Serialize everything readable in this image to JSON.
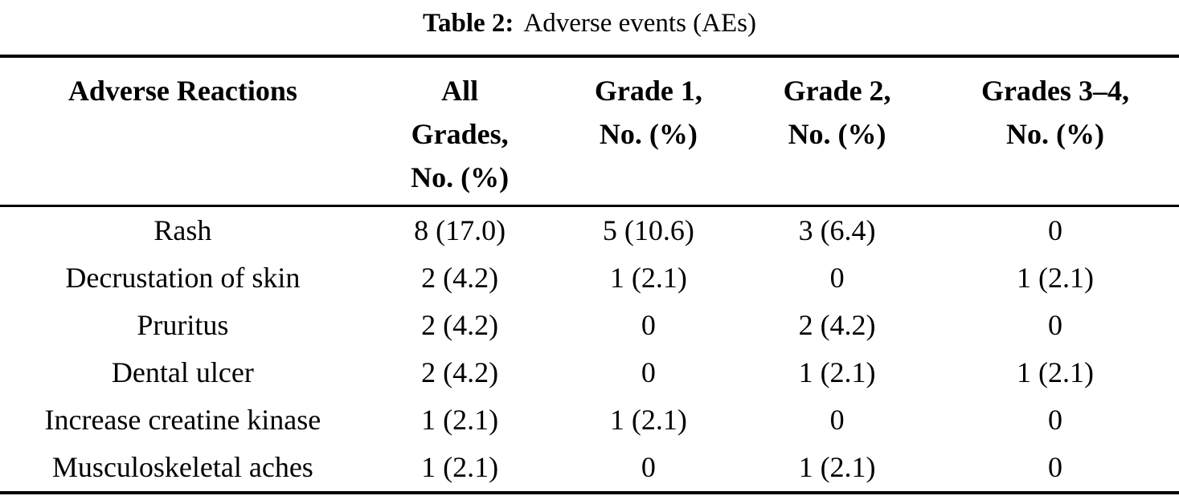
{
  "caption": {
    "label": "Table 2:",
    "text": "Adverse events (AEs)"
  },
  "table": {
    "columns": [
      "Adverse Reactions",
      "All Grades, No. (%)",
      "Grade 1, No. (%)",
      "Grade 2, No. (%)",
      "Grades 3–4, No. (%)"
    ],
    "header": [
      {
        "lines": [
          "Adverse Reactions",
          "",
          ""
        ]
      },
      {
        "lines": [
          "All",
          "Grades,",
          "No. (%)"
        ]
      },
      {
        "lines": [
          "Grade 1,",
          "No. (%)",
          ""
        ]
      },
      {
        "lines": [
          "Grade 2,",
          "No. (%)",
          ""
        ]
      },
      {
        "lines": [
          "Grades 3–4,",
          "No. (%)",
          ""
        ]
      }
    ],
    "rows": [
      {
        "cells": [
          "Rash",
          "8 (17.0)",
          "5 (10.6)",
          "3 (6.4)",
          "0"
        ]
      },
      {
        "cells": [
          "Decrustation of skin",
          "2 (4.2)",
          "1 (2.1)",
          "0",
          "1 (2.1)"
        ]
      },
      {
        "cells": [
          "Pruritus",
          "2 (4.2)",
          "0",
          "2 (4.2)",
          "0"
        ]
      },
      {
        "cells": [
          "Dental ulcer",
          "2 (4.2)",
          "0",
          "1 (2.1)",
          "1 (2.1)"
        ]
      },
      {
        "cells": [
          "Increase creatine kinase",
          "1 (2.1)",
          "1 (2.1)",
          "0",
          "0"
        ]
      },
      {
        "cells": [
          "Musculoskeletal aches",
          "1 (2.1)",
          "0",
          "1 (2.1)",
          "0"
        ]
      }
    ],
    "colors": {
      "text": "#000000",
      "rule": "#000000",
      "background": "#ffffff"
    }
  }
}
